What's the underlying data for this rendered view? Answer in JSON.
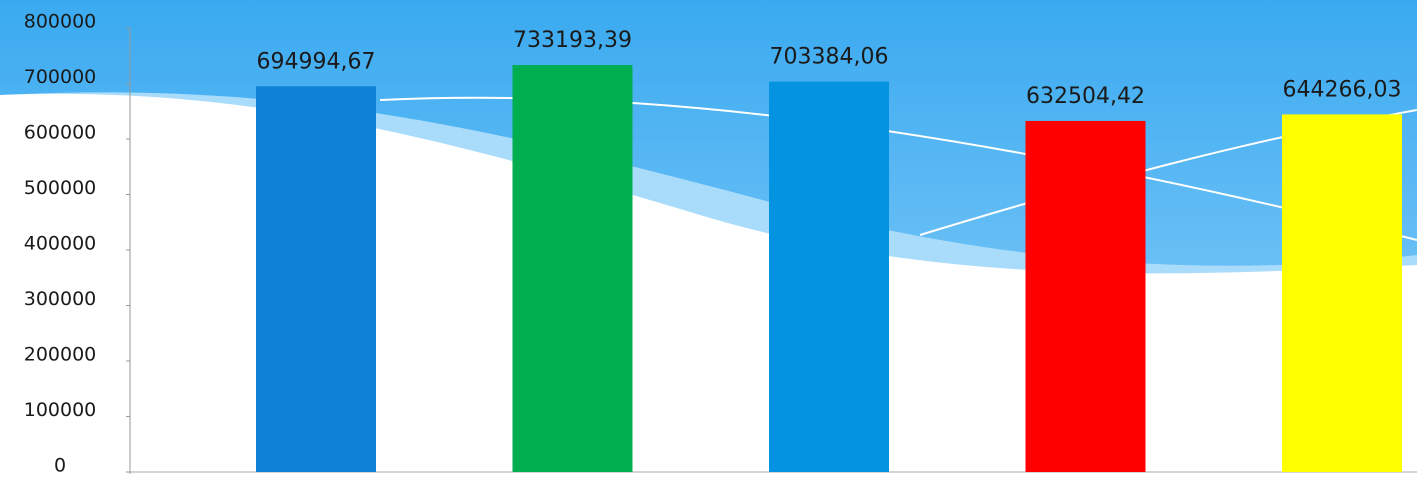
{
  "chart_data": {
    "type": "bar",
    "categories": [
      null,
      null,
      null,
      null,
      null
    ],
    "values": [
      694994.67,
      733193.39,
      703384.06,
      632504.42,
      644266.03
    ],
    "value_labels": [
      "694994,67",
      "733193,39",
      "703384,06",
      "632504,42",
      "644266,03"
    ],
    "colors": [
      "#0e82d4",
      "#00ae50",
      "#0493e0",
      "#ff0000",
      "#ffff00"
    ],
    "ylim": [
      0,
      800000
    ],
    "yticks": [
      0,
      100000,
      200000,
      300000,
      400000,
      500000,
      600000,
      700000,
      800000
    ]
  }
}
